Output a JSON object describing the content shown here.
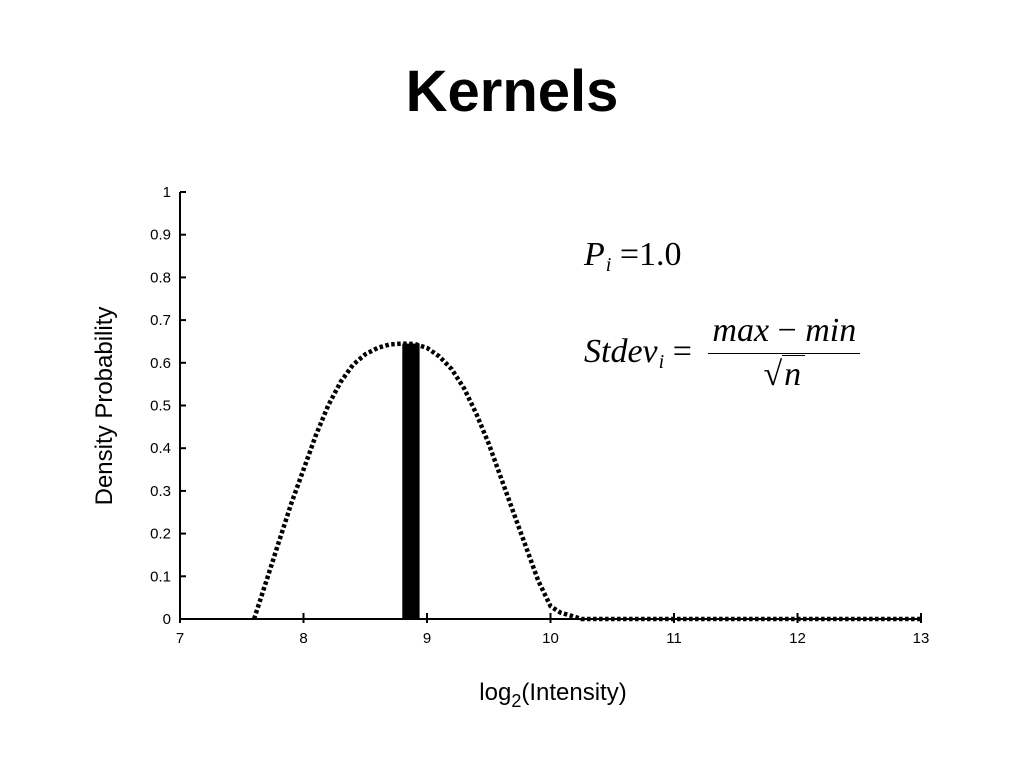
{
  "title": "Kernels",
  "formulas": {
    "p_symbol": "P",
    "p_sub": "i",
    "p_eq": "=",
    "p_value": "1.0",
    "stdev_symbol": "Stdev",
    "stdev_sub": "i",
    "stdev_eq": "=",
    "numerator_a": "max",
    "numerator_op": "−",
    "numerator_b": "min",
    "sqrt_sign": "√",
    "denominator": "n"
  },
  "chart_data": {
    "type": "line",
    "title": "",
    "xlabel": "log",
    "xlabel_sub": "2",
    "xlabel_rest": "(Intensity)",
    "ylabel": "Density Probability",
    "xlim": [
      7,
      13
    ],
    "ylim": [
      0,
      1
    ],
    "xticks": [
      "7",
      "8",
      "9",
      "10",
      "11",
      "12",
      "13"
    ],
    "yticks": [
      "0",
      "0.1",
      "0.2",
      "0.3",
      "0.4",
      "0.5",
      "0.6",
      "0.7",
      "0.8",
      "0.9",
      "1"
    ],
    "grid": false,
    "series": [
      {
        "style": "dotted",
        "color": "#000000",
        "x": [
          7.6,
          7.7,
          7.8,
          7.9,
          8.0,
          8.1,
          8.2,
          8.3,
          8.4,
          8.5,
          8.6,
          8.7,
          8.8,
          8.9,
          9.0,
          9.1,
          9.2,
          9.3,
          9.4,
          9.5,
          9.6,
          9.7,
          9.8,
          9.9,
          10.0,
          10.08,
          10.2,
          10.25,
          13.0
        ],
        "y": [
          0.0,
          0.09,
          0.18,
          0.27,
          0.35,
          0.43,
          0.5,
          0.555,
          0.595,
          0.62,
          0.635,
          0.643,
          0.645,
          0.644,
          0.635,
          0.615,
          0.585,
          0.54,
          0.48,
          0.41,
          0.33,
          0.25,
          0.17,
          0.09,
          0.03,
          0.015,
          0.005,
          0.0,
          0.0
        ]
      }
    ],
    "bar": {
      "x": 8.87,
      "y": 0.645,
      "width": 0.14,
      "color": "#000000"
    }
  }
}
